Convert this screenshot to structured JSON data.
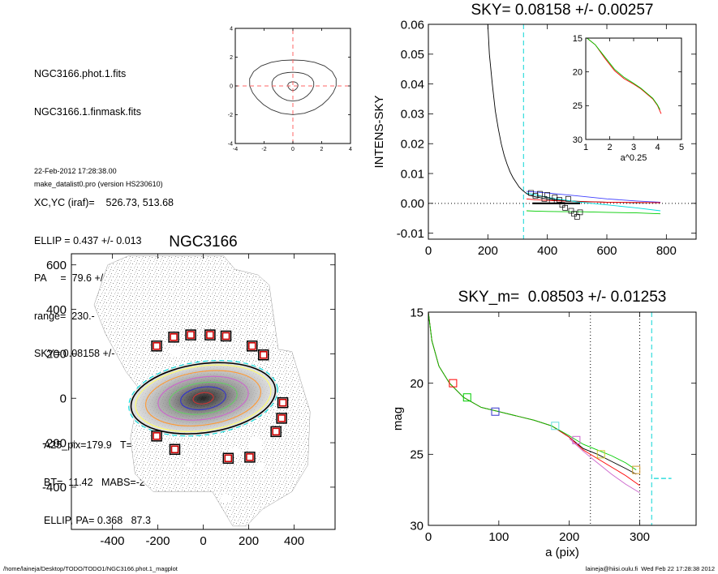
{
  "info": {
    "lines_a": [
      "NGC3166.phot.1.fits",
      "NGC3166.1.finmask.fits"
    ],
    "lines_b": [
      "XC,YC (iraf)=    526.73, 513.68",
      "ELLIP = 0.437 +/- 0.013",
      "PA     =  79.6 +/-   2.8",
      "range=  230.-  300.",
      "SKY= 0.08158 +/- 0.00257"
    ],
    "lines_c": [
      "A25_pix=179.9   T= 0.2  B",
      "BT=  11.42   MABS=-20.21",
      "ELLIP, PA= 0.368   87.3"
    ],
    "date": "22-Feb-2012 17:28:38.00",
    "program": "make_datalist0.pro (version HS230610)"
  },
  "footer": {
    "left": "/home/laineja/Desktop/TODO/TODO1/NGC3166.phot.1_magplot",
    "right": "laineja@hiisi.oulu.fi  Wed Feb 22 17:28:38 2012"
  },
  "titles": {
    "sky_plot": "SKY= 0.08158 +/- 0.00257",
    "image_plot": "NGC3166",
    "mag_plot": "SKY_m=  0.08503 +/- 0.01253"
  },
  "chart_data": [
    {
      "id": "center_contours",
      "type": "line",
      "title": "",
      "xlim": [
        -4,
        4
      ],
      "ylim": [
        -4,
        4
      ],
      "xticks": [
        -4,
        -2,
        0,
        2,
        4
      ],
      "yticks": [
        -4,
        -2,
        0,
        2,
        4
      ],
      "contours": [
        {
          "rx": 3.0,
          "ry": 1.9
        },
        {
          "rx": 1.45,
          "ry": 1.0
        },
        {
          "rx": 0.35,
          "ry": 0.3
        }
      ],
      "crosshair": [
        0,
        0
      ]
    },
    {
      "id": "sky_profile",
      "type": "line",
      "title": "SKY= 0.08158 +/- 0.00257",
      "xlabel": "",
      "ylabel": "INTENS-SKY",
      "xlim": [
        0,
        900
      ],
      "ylim": [
        -0.012,
        0.06
      ],
      "xticks": [
        0,
        200,
        400,
        600,
        800
      ],
      "yticks": [
        -0.01,
        0.0,
        0.01,
        0.02,
        0.03,
        0.04,
        0.05,
        0.06
      ],
      "ytick_labels": [
        "-0.01",
        "0.00",
        "0.01",
        "0.02",
        "0.03",
        "0.04",
        "0.05",
        "0.06"
      ],
      "series": [
        {
          "color": "#000000",
          "x": [
            200,
            205,
            215,
            225,
            235,
            245,
            255,
            265,
            275,
            285,
            295,
            305,
            315,
            330,
            340,
            360,
            380,
            400,
            420,
            450,
            480,
            520,
            560,
            600,
            650,
            700,
            780
          ],
          "y": [
            0.06,
            0.05,
            0.04,
            0.031,
            0.025,
            0.02,
            0.016,
            0.013,
            0.0105,
            0.0085,
            0.007,
            0.0055,
            0.0045,
            0.0033,
            0.0027,
            0.0022,
            0.0018,
            0.0015,
            0.0012,
            0.001,
            0.0008,
            0.0006,
            0.0005,
            0.0004,
            0.0003,
            0.0002,
            0.0002
          ]
        },
        {
          "color": "#4040ff",
          "x": [
            330,
            360,
            400,
            450,
            500,
            600,
            700,
            780
          ],
          "y": [
            0.004,
            0.0038,
            0.0035,
            0.003,
            0.0025,
            0.0015,
            0.0008,
            0.0004
          ]
        },
        {
          "color": "#00cc00",
          "x": [
            330,
            360,
            400,
            450,
            500,
            600,
            700,
            780
          ],
          "y": [
            -0.0025,
            -0.0026,
            -0.0027,
            -0.0028,
            -0.0028,
            -0.003,
            -0.0032,
            -0.0035
          ]
        },
        {
          "color": "#ff0000",
          "x": [
            330,
            360,
            400,
            450,
            500,
            600,
            700,
            780
          ],
          "y": [
            0.0015,
            0.0012,
            0.001,
            0.0008,
            0.0006,
            0.0004,
            0.0003,
            0.0002
          ]
        },
        {
          "color": "#00dddd",
          "x": [
            330,
            400,
            500,
            600,
            700,
            780
          ],
          "y": [
            0.0035,
            0.002,
            0.0005,
            -0.0005,
            -0.0015,
            -0.0025
          ]
        }
      ],
      "squares": {
        "color": "#000000",
        "x": [
          345,
          360,
          375,
          390,
          400,
          415,
          425,
          440,
          450,
          460,
          470,
          480,
          490,
          500,
          510
        ],
        "y": [
          0.0035,
          0.0025,
          0.0032,
          0.0015,
          0.0028,
          0.0008,
          0.002,
          0.0012,
          -0.0005,
          -0.0015,
          0.0015,
          -0.0025,
          -0.0035,
          -0.0045,
          -0.003
        ]
      },
      "sky_level": {
        "x": [
          350,
          510
        ],
        "y": 0.0
      },
      "vline_cyan": 320
    },
    {
      "id": "sky_inset",
      "type": "line",
      "xlabel": "a^0.25",
      "xlim": [
        1,
        5
      ],
      "ylim": [
        30,
        15
      ],
      "xticks": [
        1,
        2,
        3,
        4,
        5
      ],
      "yticks": [
        15,
        20,
        25,
        30
      ],
      "series": [
        {
          "color": "#ff0000",
          "x": [
            1.05,
            1.4,
            1.8,
            2.2,
            2.6,
            3.0,
            3.3,
            3.6,
            3.8,
            4.0,
            4.15
          ],
          "y": [
            15.0,
            16.0,
            18.0,
            19.8,
            21.0,
            21.8,
            22.5,
            23.4,
            24.0,
            25.0,
            26.2
          ]
        },
        {
          "color": "#00cc00",
          "x": [
            1.05,
            1.4,
            1.8,
            2.2,
            2.6,
            3.0,
            3.3,
            3.6,
            3.8,
            4.0,
            4.1
          ],
          "y": [
            15.0,
            16.0,
            17.8,
            19.6,
            20.8,
            21.7,
            22.4,
            23.3,
            23.9,
            24.9,
            25.6
          ]
        }
      ]
    },
    {
      "id": "galaxy_image",
      "type": "scatter",
      "title": "NGC3166",
      "xlim": [
        -580,
        580
      ],
      "ylim": [
        -590,
        650
      ],
      "xticks": [
        -400,
        -200,
        0,
        200,
        400
      ],
      "yticks": [
        -400,
        -200,
        0,
        200,
        400,
        600
      ],
      "sky_boxes": {
        "x": [
          -205,
          -130,
          -55,
          30,
          100,
          215,
          265,
          350,
          345,
          320,
          -205,
          -125,
          110,
          205
        ],
        "y": [
          235,
          275,
          285,
          285,
          280,
          235,
          195,
          -20,
          -90,
          -150,
          -170,
          -230,
          -270,
          -265
        ]
      },
      "isophotes": [
        {
          "rx": 330,
          "ry": 165,
          "color": "#00dddd"
        },
        {
          "rx": 320,
          "ry": 155,
          "color": "#000000"
        },
        {
          "rx": 300,
          "ry": 145,
          "color": "#ffff66"
        },
        {
          "rx": 255,
          "ry": 120,
          "color": "#ff9933"
        },
        {
          "rx": 200,
          "ry": 95,
          "color": "#cc66cc"
        },
        {
          "rx": 150,
          "ry": 70,
          "color": "#66cc66"
        },
        {
          "rx": 100,
          "ry": 50,
          "color": "#3333cc"
        },
        {
          "rx": 45,
          "ry": 25,
          "color": "#cc3333"
        }
      ]
    },
    {
      "id": "mag_profile",
      "type": "line",
      "title": "SKY_m=  0.08503 +/- 0.01253",
      "xlabel": "a (pix)",
      "ylabel": "mag",
      "xlim": [
        0,
        380
      ],
      "ylim": [
        30,
        15
      ],
      "xticks": [
        0,
        100,
        200,
        300
      ],
      "yticks": [
        15,
        20,
        25,
        30
      ],
      "series": [
        {
          "color": "#000000",
          "x": [
            0,
            5,
            15,
            30,
            50,
            75,
            100,
            125,
            150,
            175,
            200,
            220,
            240,
            260,
            280,
            295
          ],
          "y": [
            15.0,
            17.0,
            18.8,
            20.0,
            21.0,
            21.7,
            22.0,
            22.3,
            22.6,
            23.0,
            23.8,
            24.6,
            25.0,
            25.5,
            26.0,
            26.4
          ]
        },
        {
          "color": "#ff0000",
          "x": [
            0,
            5,
            15,
            30,
            50,
            75,
            100,
            125,
            150,
            175,
            200,
            220,
            240,
            260,
            280,
            300
          ],
          "y": [
            15.0,
            17.0,
            18.8,
            20.0,
            21.0,
            21.7,
            22.0,
            22.3,
            22.6,
            23.0,
            23.8,
            24.7,
            25.3,
            25.9,
            26.5,
            27.2
          ]
        },
        {
          "color": "#00cc00",
          "x": [
            0,
            5,
            15,
            30,
            50,
            75,
            100,
            125,
            150,
            175,
            200,
            220,
            240,
            260,
            280,
            295
          ],
          "y": [
            15.0,
            17.0,
            18.8,
            20.0,
            21.0,
            21.7,
            22.0,
            22.3,
            22.6,
            23.0,
            23.7,
            24.3,
            24.7,
            25.1,
            25.6,
            26.1
          ]
        },
        {
          "color": "#cc66cc",
          "x": [
            200,
            220,
            240,
            260,
            280,
            300
          ],
          "y": [
            23.9,
            24.8,
            25.6,
            26.4,
            27.1,
            27.7
          ]
        }
      ],
      "markers": [
        {
          "x": 35,
          "y": 20.0,
          "color": "#ff0000"
        },
        {
          "x": 55,
          "y": 21.0,
          "color": "#00cc00"
        },
        {
          "x": 95,
          "y": 22.0,
          "color": "#3333cc"
        },
        {
          "x": 180,
          "y": 23.0,
          "color": "#66dddd"
        },
        {
          "x": 210,
          "y": 24.0,
          "color": "#cc66cc"
        },
        {
          "x": 245,
          "y": 25.0,
          "color": "#cccc33"
        },
        {
          "x": 295,
          "y": 26.1,
          "color": "#cc9933"
        }
      ],
      "vlines_dotted": [
        230,
        300
      ],
      "vline_cyan": 317,
      "cyan_segment": {
        "x": [
          320,
          345
        ],
        "y": 26.7
      }
    }
  ]
}
